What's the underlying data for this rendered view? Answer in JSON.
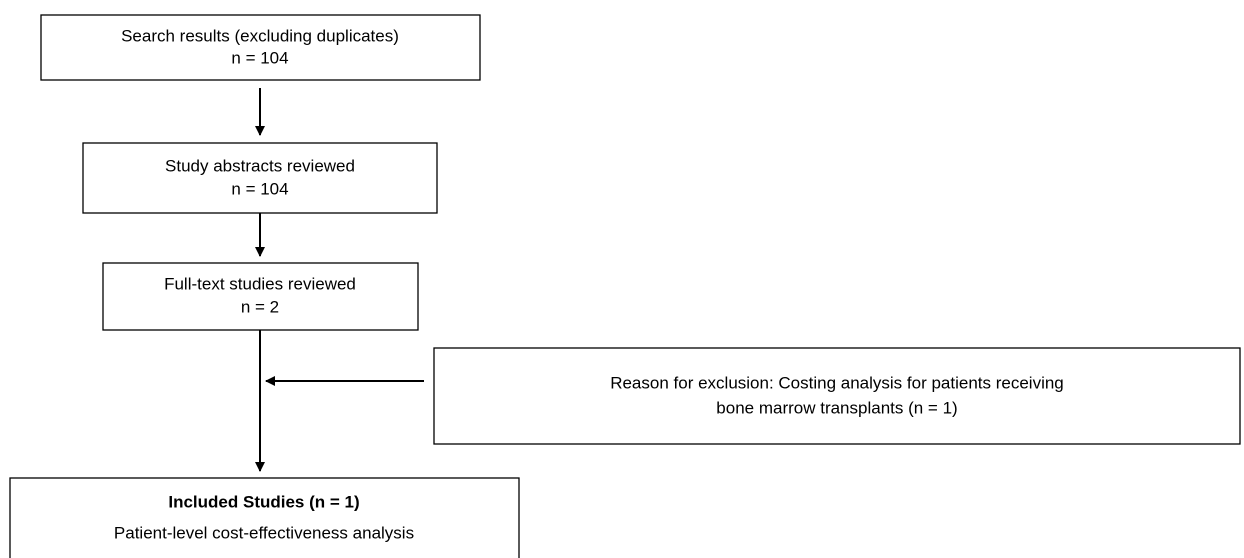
{
  "nodes": [
    {
      "lines": [
        "Search results (excluding duplicates)",
        "n = 104"
      ]
    },
    {
      "lines": [
        "Study abstracts reviewed",
        "n = 104"
      ]
    },
    {
      "lines": [
        "Full-text studies reviewed",
        "n = 2"
      ]
    },
    {
      "lines": [
        "Reason for exclusion: Costing analysis for patients receiving",
        "bone marrow transplants (n = 1)"
      ]
    },
    {
      "lines": [
        "Included Studies (n = 1)",
        "Patient-level cost-effectiveness analysis"
      ]
    }
  ]
}
